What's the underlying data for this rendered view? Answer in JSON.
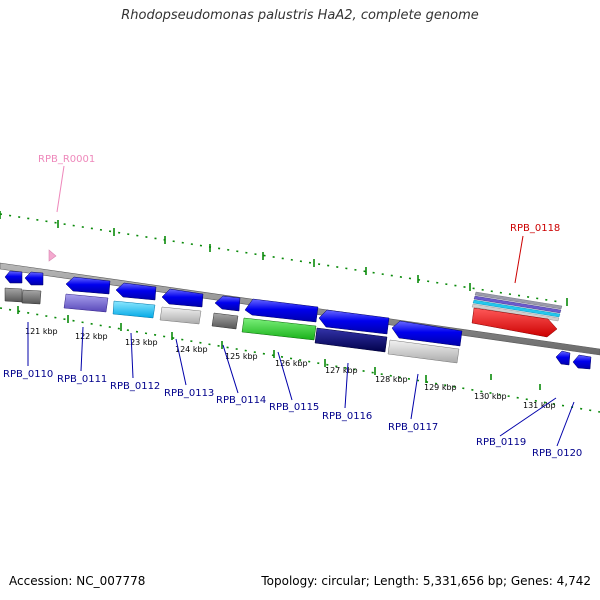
{
  "title": "Rhodopseudomonas palustris HaA2, complete genome",
  "footer": {
    "accession": "Accession: NC_007778",
    "topology": "Topology: circular; Length: 5,331,656 bp; Genes: 4,742"
  },
  "colors": {
    "backbone": "#888888",
    "tick": "#0a8a0a",
    "protein_label": "#00008b",
    "rna_label": "#ee88bb",
    "highlight_label": "#cc0000"
  },
  "kbp_labels": [
    "121 kbp",
    "122 kbp",
    "123 kbp",
    "124 kbp",
    "125 kbp",
    "126 kbp",
    "127 kbp",
    "128 kbp",
    "129 kbp",
    "130 kbp",
    "131 kbp"
  ],
  "gene_labels": [
    {
      "id": "RPB_R0001",
      "kind": "rna"
    },
    {
      "id": "RPB_0110",
      "kind": "protein"
    },
    {
      "id": "RPB_0111",
      "kind": "protein"
    },
    {
      "id": "RPB_0112",
      "kind": "protein"
    },
    {
      "id": "RPB_0113",
      "kind": "protein"
    },
    {
      "id": "RPB_0114",
      "kind": "protein"
    },
    {
      "id": "RPB_0115",
      "kind": "protein"
    },
    {
      "id": "RPB_0116",
      "kind": "protein"
    },
    {
      "id": "RPB_0117",
      "kind": "protein"
    },
    {
      "id": "RPB_0118",
      "kind": "highlight"
    },
    {
      "id": "RPB_0119",
      "kind": "protein"
    },
    {
      "id": "RPB_0120",
      "kind": "protein"
    }
  ]
}
